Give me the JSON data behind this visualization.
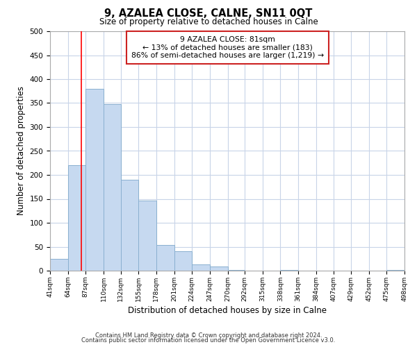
{
  "title": "9, AZALEA CLOSE, CALNE, SN11 0QT",
  "subtitle": "Size of property relative to detached houses in Calne",
  "xlabel": "Distribution of detached houses by size in Calne",
  "ylabel": "Number of detached properties",
  "bar_color": "#c6d9f0",
  "bar_edge_color": "#8ab0d0",
  "vline_x": 81,
  "vline_color": "red",
  "annotation_line1": "9 AZALEA CLOSE: 81sqm",
  "annotation_line2": "← 13% of detached houses are smaller (183)",
  "annotation_line3": "86% of semi-detached houses are larger (1,219) →",
  "bin_edges": [
    41,
    64,
    87,
    110,
    132,
    155,
    178,
    201,
    224,
    247,
    270,
    292,
    315,
    338,
    361,
    384,
    407,
    429,
    452,
    475,
    498
  ],
  "bar_heights": [
    25,
    220,
    380,
    348,
    190,
    146,
    53,
    40,
    13,
    8,
    2,
    0,
    0,
    1,
    0,
    0,
    0,
    0,
    0,
    1
  ],
  "xlim_left": 41,
  "xlim_right": 498,
  "ylim_top": 500,
  "yticks": [
    0,
    50,
    100,
    150,
    200,
    250,
    300,
    350,
    400,
    450,
    500
  ],
  "tick_labels": [
    "41sqm",
    "64sqm",
    "87sqm",
    "110sqm",
    "132sqm",
    "155sqm",
    "178sqm",
    "201sqm",
    "224sqm",
    "247sqm",
    "270sqm",
    "292sqm",
    "315sqm",
    "338sqm",
    "361sqm",
    "384sqm",
    "407sqm",
    "429sqm",
    "452sqm",
    "475sqm",
    "498sqm"
  ],
  "footer_line1": "Contains HM Land Registry data © Crown copyright and database right 2024.",
  "footer_line2": "Contains public sector information licensed under the Open Government Licence v3.0.",
  "background_color": "#ffffff",
  "grid_color": "#c8d4e8"
}
